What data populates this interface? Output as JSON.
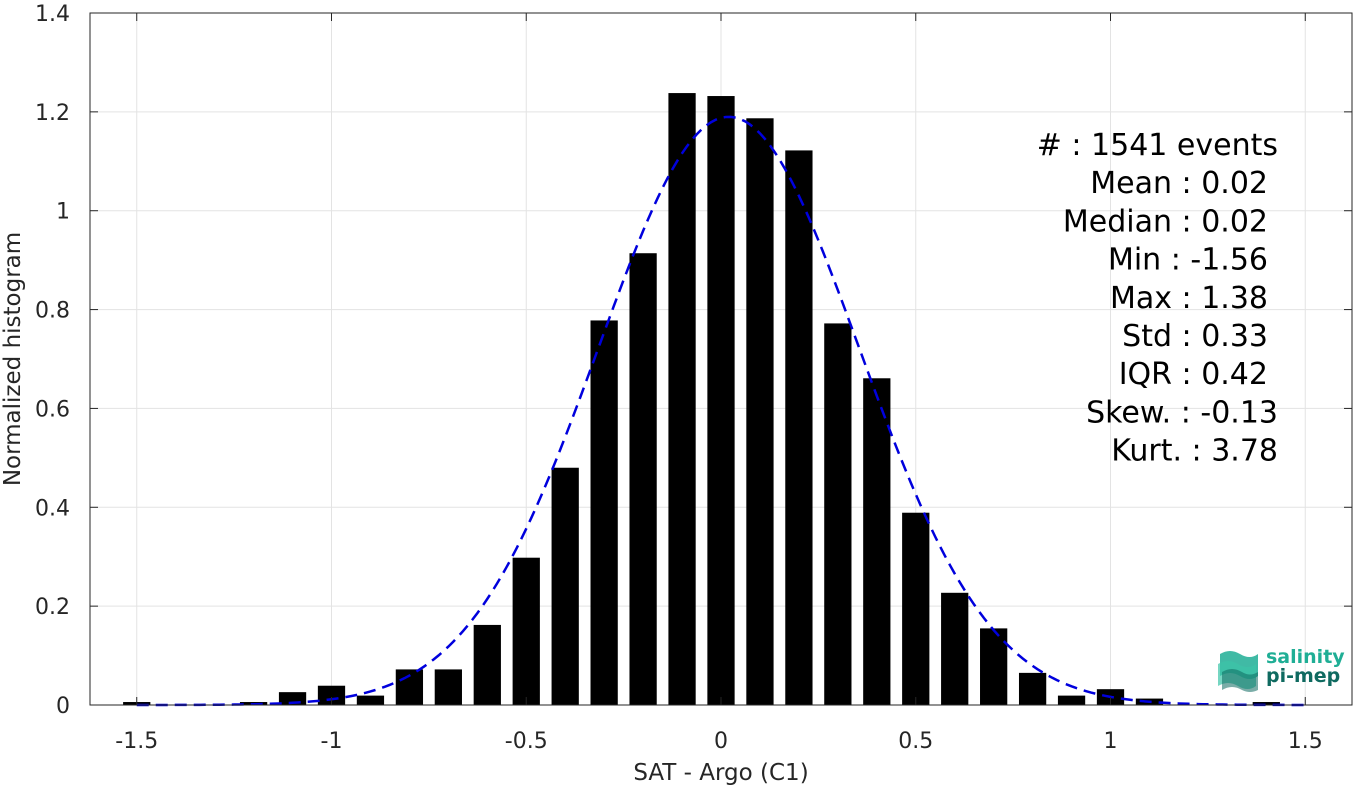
{
  "chart_data": {
    "type": "bar",
    "xlabel": "SAT - Argo (C1)",
    "ylabel": "Normalized histogram",
    "xlim": [
      -1.62,
      1.62
    ],
    "ylim": [
      0,
      1.4
    ],
    "xticks": [
      -1.5,
      -1,
      -0.5,
      0,
      0.5,
      1,
      1.5
    ],
    "xtick_labels": [
      "-1.5",
      "-1",
      "-0.5",
      "0",
      "0.5",
      "1",
      "1.5"
    ],
    "yticks": [
      0,
      0.2,
      0.4,
      0.6,
      0.8,
      1,
      1.2,
      1.4
    ],
    "ytick_labels": [
      "0",
      "0.2",
      "0.4",
      "0.6",
      "0.8",
      "1",
      "1.2",
      "1.4"
    ],
    "grid": true,
    "bar_width": 0.07,
    "bar_color": "#000000",
    "bars": {
      "x": [
        -1.5,
        -1.2,
        -1.1,
        -1.0,
        -0.9,
        -0.8,
        -0.7,
        -0.6,
        -0.5,
        -0.4,
        -0.3,
        -0.2,
        -0.1,
        0.0,
        0.1,
        0.2,
        0.3,
        0.4,
        0.5,
        0.6,
        0.7,
        0.8,
        0.9,
        1.0,
        1.1,
        1.4
      ],
      "values": [
        0.006,
        0.006,
        0.026,
        0.039,
        0.019,
        0.072,
        0.072,
        0.162,
        0.298,
        0.48,
        0.778,
        0.914,
        1.238,
        1.232,
        1.187,
        1.122,
        0.772,
        0.661,
        0.389,
        0.227,
        0.155,
        0.065,
        0.019,
        0.032,
        0.013,
        0.006
      ]
    },
    "fit_curve": {
      "style": "dashed",
      "color": "#0000dd",
      "mean": 0.02,
      "std": 0.335,
      "peak": 1.19,
      "x_range": [
        -1.5,
        1.5
      ]
    },
    "annotations": [
      "#  : 1541 events",
      "Mean : 0.02",
      "Median : 0.02",
      "Min : -1.56",
      "Max : 1.38",
      "Std : 0.33",
      "IQR : 0.42",
      "Skew. : -0.13",
      "Kurt. : 3.78"
    ]
  },
  "logo": {
    "line1": "salinity",
    "line2": "pi-mep",
    "color_light": "#1fae95",
    "color_dark": "#0f6a60"
  }
}
